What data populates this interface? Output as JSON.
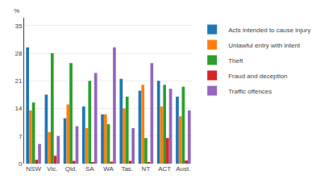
{
  "chart_data": {
    "type": "bar",
    "categories": [
      "NSW",
      "Vic.",
      "Qld.",
      "SA",
      "WA",
      "Tas.",
      "NT",
      "ACT",
      "Aust."
    ],
    "series": [
      {
        "name": "Acts intended to cause injury",
        "values": [
          29.5,
          17.5,
          11.5,
          14.5,
          12.5,
          21.5,
          18.5,
          21.0,
          17.0
        ]
      },
      {
        "name": "Unlawful entry with intent",
        "values": [
          13.5,
          8.0,
          15.0,
          9.0,
          12.5,
          14.0,
          20.0,
          14.5,
          12.0
        ]
      },
      {
        "name": "Theft",
        "values": [
          15.5,
          28.0,
          25.5,
          21.0,
          10.0,
          17.0,
          6.5,
          20.0,
          19.5
        ]
      },
      {
        "name": "Fraud and deception",
        "values": [
          1.0,
          2.0,
          0.7,
          0.3,
          0.5,
          0.7,
          0.3,
          6.5,
          0.8
        ]
      },
      {
        "name": "Traffic offences",
        "values": [
          5.0,
          7.0,
          9.5,
          23.0,
          29.5,
          9.0,
          25.5,
          19.0,
          13.5
        ]
      }
    ],
    "ylabel": "%",
    "ylim": [
      0,
      37
    ],
    "yticks": [
      0,
      7,
      14,
      21,
      28,
      35
    ],
    "grid": true,
    "legend": "right"
  }
}
